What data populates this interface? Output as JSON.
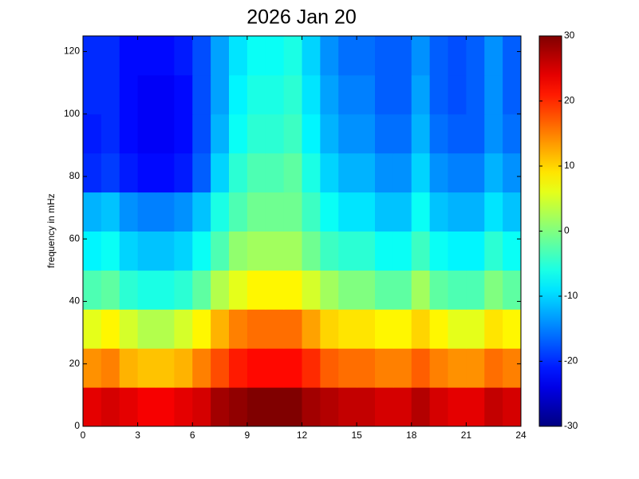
{
  "chart_data": {
    "type": "heatmap",
    "title": "2026 Jan 20",
    "y_label": "frequency in mHz",
    "x_bins": [
      0,
      1,
      2,
      3,
      4,
      5,
      6,
      7,
      8,
      9,
      10,
      11,
      12,
      13,
      14,
      15,
      16,
      17,
      18,
      19,
      20,
      21,
      22,
      23,
      24
    ],
    "y_bins": [
      0,
      12.5,
      25,
      37.5,
      50,
      62.5,
      75,
      87.5,
      100,
      112.5,
      125
    ],
    "values": [
      [
        24,
        25,
        24,
        23,
        23,
        24,
        25,
        28,
        29,
        30,
        30,
        30,
        28,
        27,
        26,
        26,
        25,
        25,
        27,
        25,
        24,
        24,
        26,
        25
      ],
      [
        14,
        15,
        12,
        11,
        11,
        12,
        15,
        18,
        21,
        22,
        22,
        22,
        20,
        17,
        16,
        16,
        15,
        15,
        17,
        15,
        14,
        14,
        16,
        15
      ],
      [
        6,
        8,
        5,
        3,
        3,
        5,
        8,
        12,
        15,
        16,
        16,
        16,
        13,
        10,
        9,
        9,
        8,
        8,
        10,
        8,
        6,
        6,
        9,
        8
      ],
      [
        -3,
        -2,
        -5,
        -6,
        -6,
        -5,
        -2,
        3,
        6,
        8,
        8,
        8,
        5,
        2,
        0,
        0,
        -2,
        -2,
        2,
        -2,
        -3,
        -3,
        0,
        -2
      ],
      [
        -8,
        -7,
        -10,
        -11,
        -11,
        -10,
        -7,
        -3,
        1,
        2,
        2,
        2,
        -1,
        -4,
        -5,
        -5,
        -7,
        -7,
        -4,
        -7,
        -8,
        -8,
        -5,
        -7
      ],
      [
        -12,
        -11,
        -14,
        -15,
        -15,
        -14,
        -11,
        -6,
        -3,
        -1,
        -1,
        -1,
        -4,
        -7,
        -9,
        -9,
        -11,
        -11,
        -7,
        -11,
        -12,
        -12,
        -9,
        -11
      ],
      [
        -20,
        -19,
        -21,
        -22,
        -22,
        -21,
        -17,
        -10,
        -5,
        -3,
        -3,
        -2,
        -6,
        -10,
        -12,
        -12,
        -14,
        -14,
        -10,
        -14,
        -15,
        -15,
        -12,
        -14
      ],
      [
        -21,
        -20,
        -22,
        -23,
        -23,
        -22,
        -18,
        -12,
        -7,
        -5,
        -5,
        -4,
        -8,
        -12,
        -14,
        -14,
        -16,
        -16,
        -12,
        -16,
        -17,
        -17,
        -14,
        -16
      ],
      [
        -20,
        -20,
        -22,
        -23,
        -23,
        -22,
        -18,
        -13,
        -8,
        -6,
        -6,
        -5,
        -9,
        -13,
        -15,
        -15,
        -17,
        -17,
        -13,
        -17,
        -18,
        -17,
        -14,
        -17
      ],
      [
        -20,
        -20,
        -22,
        -22,
        -22,
        -21,
        -18,
        -13,
        -9,
        -7,
        -7,
        -6,
        -10,
        -14,
        -16,
        -16,
        -17,
        -17,
        -14,
        -17,
        -18,
        -17,
        -14,
        -17
      ]
    ],
    "xlim": [
      0,
      24
    ],
    "xticks": [
      0,
      3,
      6,
      9,
      12,
      15,
      18,
      21,
      24
    ],
    "ylim": [
      0,
      125
    ],
    "yticks": [
      0,
      20,
      40,
      60,
      80,
      100,
      120
    ],
    "colormap": "jet",
    "clim": [
      -30,
      30
    ],
    "colorbar_ticks": [
      -30,
      -20,
      -10,
      0,
      10,
      20,
      30
    ]
  }
}
